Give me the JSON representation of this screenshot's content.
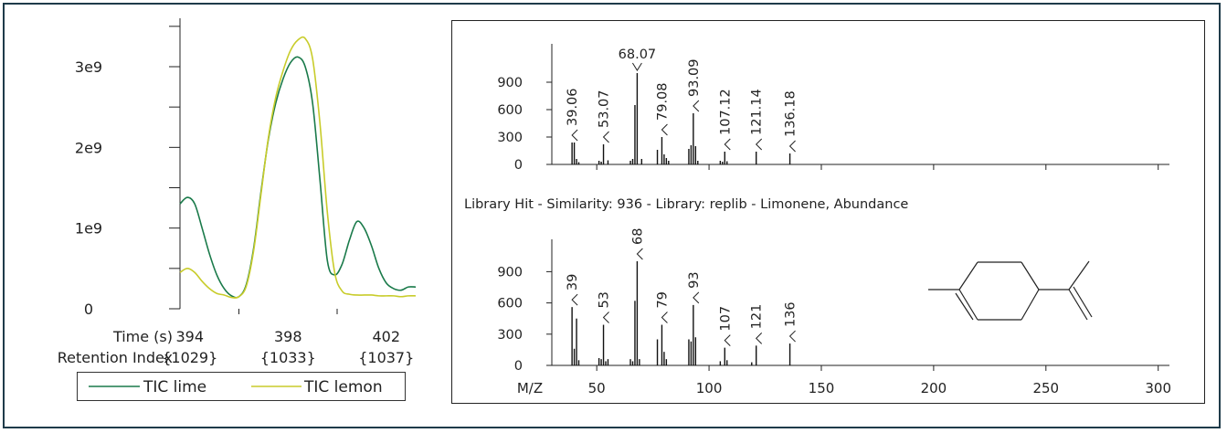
{
  "colors": {
    "lime": "#1a7a4a",
    "lemon": "#c8cc2a",
    "axis": "#222222",
    "frame": "#1f3b4a"
  },
  "chart_data": [
    {
      "type": "line",
      "id": "tic",
      "xlabel": "Time (s)",
      "x_ticks": [
        "394",
        "398",
        "402"
      ],
      "secondary_x_label": "Retention Index",
      "secondary_x_ticks": [
        "{1029}",
        "{1033}",
        "{1037}"
      ],
      "y_ticks": [
        "0",
        "1e9",
        "2e9",
        "3e9"
      ],
      "xlim": [
        393.6,
        403.2
      ],
      "ylim": [
        0,
        3600000000.0
      ],
      "legend_position": "bottom",
      "series": [
        {
          "name": "TIC lime",
          "color": "#1a7a4a",
          "x": [
            393.6,
            393.9,
            394.2,
            394.5,
            394.8,
            395.1,
            395.4,
            395.7,
            396.0,
            396.3,
            396.6,
            396.9,
            397.2,
            397.5,
            397.8,
            398.1,
            398.4,
            398.7,
            399.0,
            399.3,
            399.6,
            399.9,
            400.2,
            400.5,
            400.8,
            401.1,
            401.4,
            401.7,
            402.0,
            402.3,
            402.6,
            402.9,
            403.2
          ],
          "y": [
            1300000000.0,
            1380000000.0,
            1300000000.0,
            1000000000.0,
            680000000.0,
            420000000.0,
            250000000.0,
            160000000.0,
            150000000.0,
            300000000.0,
            750000000.0,
            1450000000.0,
            2100000000.0,
            2550000000.0,
            2850000000.0,
            3050000000.0,
            3120000000.0,
            3000000000.0,
            2550000000.0,
            1600000000.0,
            600000000.0,
            420000000.0,
            550000000.0,
            850000000.0,
            1080000000.0,
            1000000000.0,
            780000000.0,
            500000000.0,
            320000000.0,
            250000000.0,
            230000000.0,
            270000000.0,
            270000000.0
          ]
        },
        {
          "name": "TIC lemon",
          "color": "#c8cc2a",
          "x": [
            393.6,
            393.9,
            394.2,
            394.5,
            394.8,
            395.1,
            395.4,
            395.7,
            396.0,
            396.3,
            396.6,
            396.9,
            397.2,
            397.5,
            397.8,
            398.1,
            398.4,
            398.7,
            399.0,
            399.3,
            399.6,
            399.9,
            400.2,
            400.5,
            400.8,
            401.1,
            401.4,
            401.7,
            402.0,
            402.3,
            402.6,
            402.9,
            403.2
          ],
          "y": [
            450000000.0,
            500000000.0,
            450000000.0,
            340000000.0,
            250000000.0,
            190000000.0,
            170000000.0,
            140000000.0,
            150000000.0,
            280000000.0,
            720000000.0,
            1420000000.0,
            2120000000.0,
            2620000000.0,
            2950000000.0,
            3200000000.0,
            3330000000.0,
            3350000000.0,
            3100000000.0,
            2300000000.0,
            1200000000.0,
            450000000.0,
            220000000.0,
            180000000.0,
            170000000.0,
            170000000.0,
            170000000.0,
            160000000.0,
            160000000.0,
            160000000.0,
            150000000.0,
            160000000.0,
            160000000.0
          ]
        }
      ]
    },
    {
      "type": "bar",
      "id": "sample-spectrum",
      "ylim": [
        0,
        1000
      ],
      "xlim": [
        30,
        305
      ],
      "y_ticks": [
        "0",
        "300",
        "600",
        "900"
      ],
      "peaks": [
        {
          "mz": 39,
          "v": 240
        },
        {
          "mz": 40,
          "v": 240
        },
        {
          "mz": 41,
          "v": 60
        },
        {
          "mz": 42,
          "v": 25
        },
        {
          "mz": 51,
          "v": 40
        },
        {
          "mz": 52,
          "v": 30
        },
        {
          "mz": 53,
          "v": 220
        },
        {
          "mz": 55,
          "v": 45
        },
        {
          "mz": 65,
          "v": 40
        },
        {
          "mz": 66,
          "v": 60
        },
        {
          "mz": 67,
          "v": 650
        },
        {
          "mz": 68,
          "v": 1000
        },
        {
          "mz": 70,
          "v": 60
        },
        {
          "mz": 77,
          "v": 160
        },
        {
          "mz": 79,
          "v": 300
        },
        {
          "mz": 80,
          "v": 110
        },
        {
          "mz": 81,
          "v": 70
        },
        {
          "mz": 82,
          "v": 40
        },
        {
          "mz": 91,
          "v": 170
        },
        {
          "mz": 92,
          "v": 210
        },
        {
          "mz": 93,
          "v": 560
        },
        {
          "mz": 94,
          "v": 200
        },
        {
          "mz": 95,
          "v": 40
        },
        {
          "mz": 105,
          "v": 40
        },
        {
          "mz": 106,
          "v": 30
        },
        {
          "mz": 107,
          "v": 140
        },
        {
          "mz": 108,
          "v": 35
        },
        {
          "mz": 121,
          "v": 140
        },
        {
          "mz": 136,
          "v": 120
        }
      ],
      "labels": [
        {
          "mz": 39,
          "text": "39.06"
        },
        {
          "mz": 53,
          "text": "53.07"
        },
        {
          "mz": 68,
          "text": "68.07"
        },
        {
          "mz": 79,
          "text": "79.08"
        },
        {
          "mz": 93,
          "text": "93.09"
        },
        {
          "mz": 107,
          "text": "107.12"
        },
        {
          "mz": 121,
          "text": "121.14"
        },
        {
          "mz": 136,
          "text": "136.18"
        }
      ]
    },
    {
      "type": "bar",
      "id": "library-spectrum",
      "title": "Library Hit - Similarity: 936 - Library: replib - Limonene, Abundance",
      "xlabel": "M/Z",
      "ylim": [
        0,
        1000
      ],
      "xlim": [
        30,
        305
      ],
      "x_ticks": [
        50,
        100,
        150,
        200,
        250,
        300
      ],
      "y_ticks": [
        "0",
        "300",
        "600",
        "900"
      ],
      "peaks": [
        {
          "mz": 39,
          "v": 560
        },
        {
          "mz": 40,
          "v": 160
        },
        {
          "mz": 41,
          "v": 450
        },
        {
          "mz": 42,
          "v": 50
        },
        {
          "mz": 51,
          "v": 70
        },
        {
          "mz": 52,
          "v": 60
        },
        {
          "mz": 53,
          "v": 390
        },
        {
          "mz": 54,
          "v": 40
        },
        {
          "mz": 55,
          "v": 60
        },
        {
          "mz": 65,
          "v": 60
        },
        {
          "mz": 66,
          "v": 40
        },
        {
          "mz": 67,
          "v": 620
        },
        {
          "mz": 68,
          "v": 1000
        },
        {
          "mz": 69,
          "v": 60
        },
        {
          "mz": 77,
          "v": 250
        },
        {
          "mz": 79,
          "v": 390
        },
        {
          "mz": 80,
          "v": 130
        },
        {
          "mz": 81,
          "v": 60
        },
        {
          "mz": 91,
          "v": 250
        },
        {
          "mz": 92,
          "v": 230
        },
        {
          "mz": 93,
          "v": 580
        },
        {
          "mz": 94,
          "v": 270
        },
        {
          "mz": 105,
          "v": 40
        },
        {
          "mz": 107,
          "v": 170
        },
        {
          "mz": 108,
          "v": 50
        },
        {
          "mz": 119,
          "v": 30
        },
        {
          "mz": 121,
          "v": 190
        },
        {
          "mz": 136,
          "v": 210
        }
      ],
      "labels": [
        {
          "mz": 39,
          "text": "39"
        },
        {
          "mz": 53,
          "text": "53"
        },
        {
          "mz": 68,
          "text": "68"
        },
        {
          "mz": 79,
          "text": "79"
        },
        {
          "mz": 93,
          "text": "93"
        },
        {
          "mz": 107,
          "text": "107"
        },
        {
          "mz": 121,
          "text": "121"
        },
        {
          "mz": 136,
          "text": "136"
        }
      ]
    }
  ]
}
